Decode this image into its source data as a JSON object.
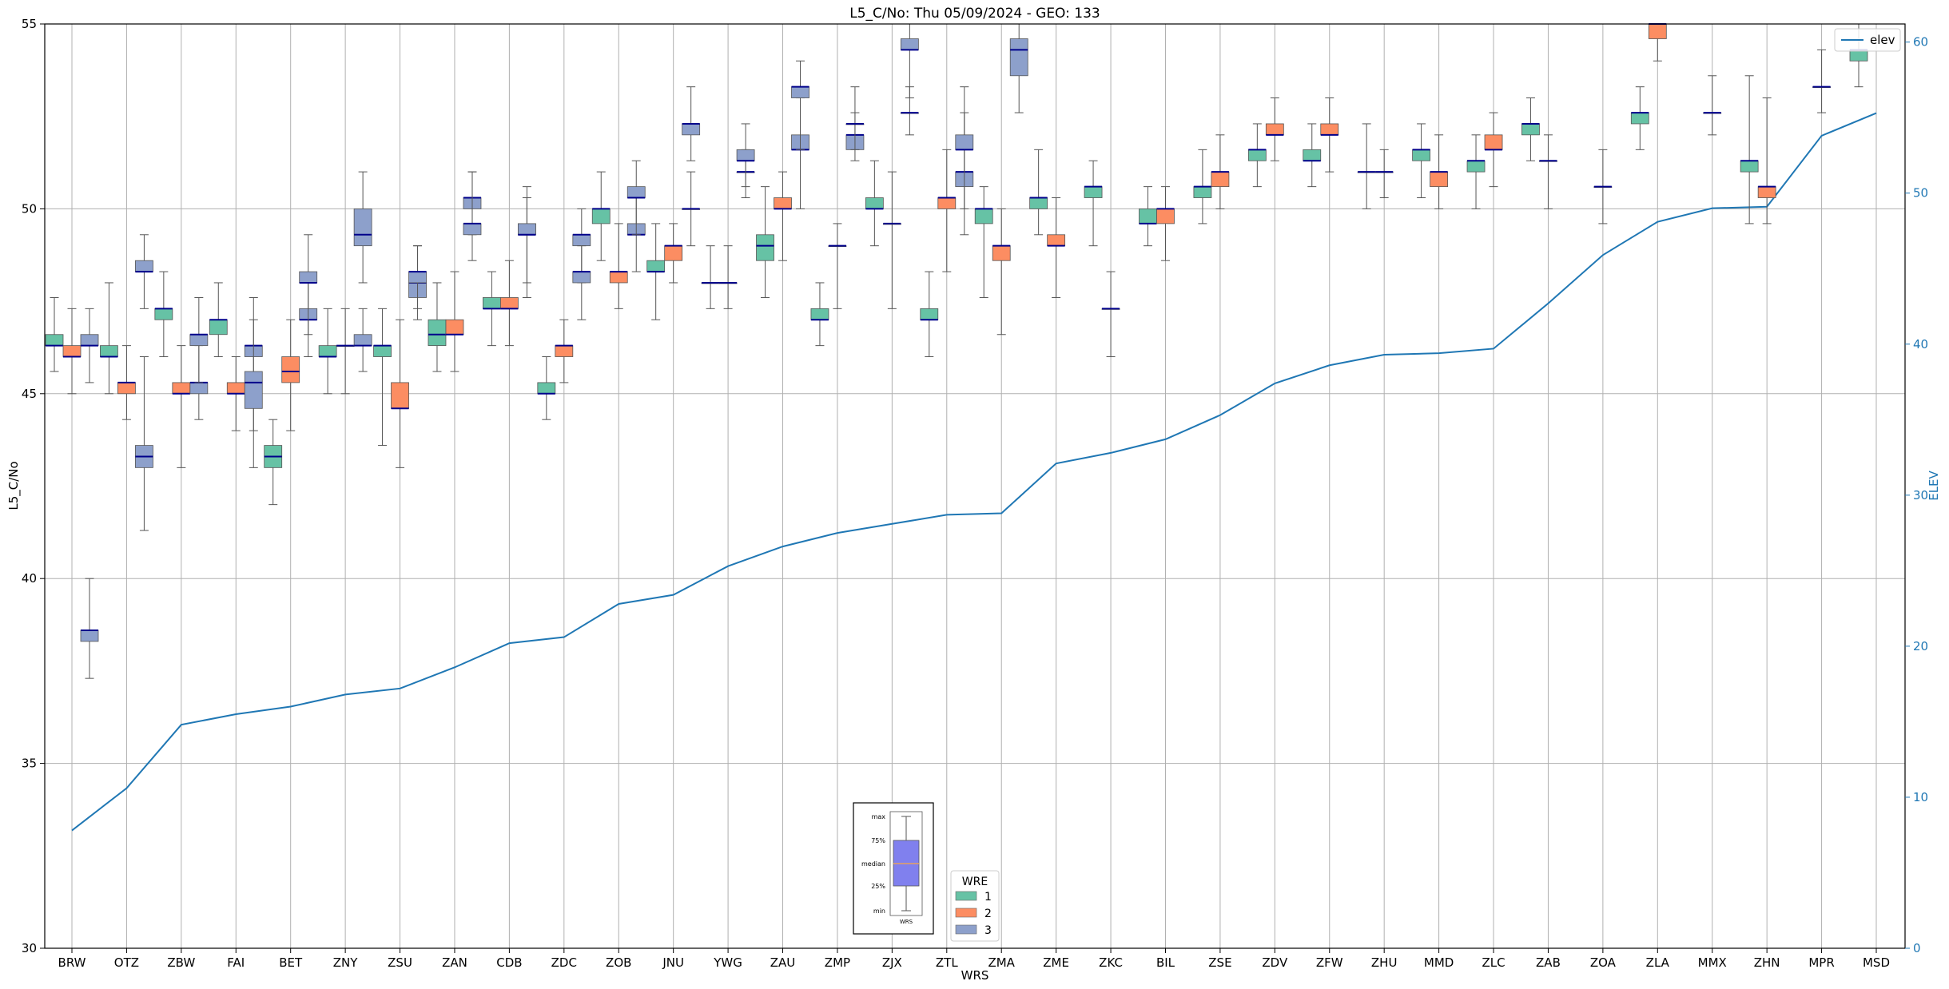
{
  "chart_data": {
    "type": "box",
    "title": "L5_C/No: Thu 05/09/2024 - GEO: 133",
    "xlabel": "WRS",
    "ylabel": "L5_C/No",
    "y2label": "ELEV",
    "ylim": [
      30,
      55
    ],
    "y2lim": [
      0,
      61.2
    ],
    "yticks": [
      30,
      35,
      40,
      45,
      50,
      55
    ],
    "y2ticks": [
      0,
      10,
      20,
      30,
      40,
      50,
      60
    ],
    "grid": true,
    "categories": [
      "BRW",
      "OTZ",
      "ZBW",
      "FAI",
      "BET",
      "ZNY",
      "ZSU",
      "ZAN",
      "CDB",
      "ZDC",
      "ZOB",
      "JNU",
      "YWG",
      "ZAU",
      "ZMP",
      "ZJX",
      "ZTL",
      "ZMA",
      "ZME",
      "ZKC",
      "BIL",
      "ZSE",
      "ZDV",
      "ZFW",
      "ZHU",
      "MMD",
      "ZLC",
      "ZAB",
      "ZOA",
      "ZLA",
      "MMX",
      "ZHN",
      "MPR",
      "MSD"
    ],
    "legend_wre": {
      "title": "WRE",
      "placement": "lower-center",
      "entries": [
        "1",
        "2",
        "3"
      ]
    },
    "legend_elev": {
      "label": "elev",
      "placement": "top-right"
    },
    "inset_legend": {
      "labels": [
        "max",
        "75%",
        "median",
        "25%",
        "min"
      ],
      "xlabel": "WRS",
      "placement": "lower-center"
    },
    "colors": {
      "wre1": "#66c2a5",
      "wre2": "#fc8d62",
      "wre3": "#8da0cb",
      "median": "#00008b",
      "elev": "#1f77b4",
      "whisker": "#555555",
      "grid": "#b0b0b0",
      "inset_box": "#8080ee",
      "inset_median": "#e6a060"
    },
    "box_series": [
      {
        "name": "1",
        "values": [
          {
            "min": 45.6,
            "q1": 46.3,
            "median": 46.3,
            "q3": 46.6,
            "max": 47.6
          },
          {
            "min": 45.0,
            "q1": 46.0,
            "median": 46.0,
            "q3": 46.3,
            "max": 48.0
          },
          {
            "min": 46.0,
            "q1": 47.0,
            "median": 47.3,
            "q3": 47.3,
            "max": 48.3
          },
          {
            "min": 46.0,
            "q1": 46.6,
            "median": 47.0,
            "q3": 47.0,
            "max": 48.0
          },
          {
            "min": 42.0,
            "q1": 43.0,
            "median": 43.3,
            "q3": 43.6,
            "max": 44.3
          },
          {
            "min": 45.0,
            "q1": 46.0,
            "median": 46.0,
            "q3": 46.3,
            "max": 47.3
          },
          {
            "min": 43.6,
            "q1": 46.0,
            "median": 46.3,
            "q3": 46.3,
            "max": 47.3
          },
          {
            "min": 45.6,
            "q1": 46.3,
            "median": 46.6,
            "q3": 47.0,
            "max": 48.0
          },
          {
            "min": 46.3,
            "q1": 47.3,
            "median": 47.3,
            "q3": 47.6,
            "max": 48.3
          },
          {
            "min": 44.3,
            "q1": 45.0,
            "median": 45.0,
            "q3": 45.3,
            "max": 46.0
          },
          {
            "min": 48.6,
            "q1": 49.6,
            "median": 50.0,
            "q3": 50.0,
            "max": 51.0
          },
          {
            "min": 47.0,
            "q1": 48.3,
            "median": 48.3,
            "q3": 48.6,
            "max": 49.6
          },
          {
            "min": 47.3,
            "q1": 48.0,
            "median": 48.0,
            "q3": 48.0,
            "max": 49.0
          },
          {
            "min": 47.6,
            "q1": 48.6,
            "median": 49.0,
            "q3": 49.3,
            "max": 50.6
          },
          {
            "min": 46.3,
            "q1": 47.0,
            "median": 47.0,
            "q3": 47.3,
            "max": 48.0
          },
          {
            "min": 49.0,
            "q1": 50.0,
            "median": 50.0,
            "q3": 50.3,
            "max": 51.3
          },
          {
            "min": 46.0,
            "q1": 47.0,
            "median": 47.0,
            "q3": 47.3,
            "max": 48.3
          },
          {
            "min": 47.6,
            "q1": 49.6,
            "median": 50.0,
            "q3": 50.0,
            "max": 50.6
          },
          {
            "min": 49.3,
            "q1": 50.0,
            "median": 50.3,
            "q3": 50.3,
            "max": 51.6
          },
          {
            "min": 49.0,
            "q1": 50.3,
            "median": 50.6,
            "q3": 50.6,
            "max": 51.3
          },
          {
            "min": 49.0,
            "q1": 49.6,
            "median": 49.6,
            "q3": 50.0,
            "max": 50.6
          },
          {
            "min": 49.6,
            "q1": 50.3,
            "median": 50.6,
            "q3": 50.6,
            "max": 51.6
          },
          {
            "min": 50.6,
            "q1": 51.3,
            "median": 51.6,
            "q3": 51.6,
            "max": 52.3
          },
          {
            "min": 50.6,
            "q1": 51.3,
            "median": 51.3,
            "q3": 51.6,
            "max": 52.3
          },
          {
            "min": 50.0,
            "q1": 51.0,
            "median": 51.0,
            "q3": 51.0,
            "max": 52.3
          },
          {
            "min": 50.3,
            "q1": 51.3,
            "median": 51.6,
            "q3": 51.6,
            "max": 52.3
          },
          {
            "min": 50.0,
            "q1": 51.0,
            "median": 51.3,
            "q3": 51.3,
            "max": 52.0
          },
          {
            "min": 51.3,
            "q1": 52.0,
            "median": 52.3,
            "q3": 52.3,
            "max": 53.0
          },
          {
            "min": 51.6,
            "q1": 52.3,
            "median": 52.6,
            "q3": 52.6,
            "max": 53.3
          },
          {
            "min": 49.6,
            "q1": 51.0,
            "median": 51.3,
            "q3": 51.3,
            "max": 53.6
          },
          {
            "min": 53.3,
            "q1": 54.0,
            "median": 54.3,
            "q3": 54.3,
            "max": 55.0
          }
        ],
        "slots": [
          0,
          1,
          2,
          3,
          4,
          5,
          6,
          7,
          8,
          9,
          10,
          11,
          12,
          13,
          14,
          15,
          16,
          17,
          18,
          19,
          20,
          21,
          22,
          23,
          24,
          25,
          26,
          27,
          29,
          31,
          33
        ]
      },
      {
        "name": "2",
        "values": [
          {
            "min": 45.0,
            "q1": 46.0,
            "median": 46.0,
            "q3": 46.3,
            "max": 47.3
          },
          {
            "min": 44.3,
            "q1": 45.0,
            "median": 45.3,
            "q3": 45.3,
            "max": 46.3
          },
          {
            "min": 43.0,
            "q1": 45.0,
            "median": 45.0,
            "q3": 45.3,
            "max": 46.3
          },
          {
            "min": 44.0,
            "q1": 45.0,
            "median": 45.0,
            "q3": 45.3,
            "max": 46.0
          },
          {
            "min": 44.0,
            "q1": 45.3,
            "median": 45.6,
            "q3": 46.0,
            "max": 47.0
          },
          {
            "min": 45.0,
            "q1": 46.3,
            "median": 46.3,
            "q3": 46.3,
            "max": 47.3
          },
          {
            "min": 43.0,
            "q1": 44.6,
            "median": 44.6,
            "q3": 45.3,
            "max": 47.0
          },
          {
            "min": 45.6,
            "q1": 46.6,
            "median": 46.6,
            "q3": 47.0,
            "max": 48.3
          },
          {
            "min": 46.3,
            "q1": 47.3,
            "median": 47.3,
            "q3": 47.6,
            "max": 48.6
          },
          {
            "min": 45.3,
            "q1": 46.0,
            "median": 46.3,
            "q3": 46.3,
            "max": 47.0
          },
          {
            "min": 47.3,
            "q1": 48.0,
            "median": 48.3,
            "q3": 48.3,
            "max": 49.6
          },
          {
            "min": 48.0,
            "q1": 48.6,
            "median": 49.0,
            "q3": 49.0,
            "max": 49.6
          },
          {
            "min": 47.3,
            "q1": 48.0,
            "median": 48.0,
            "q3": 48.0,
            "max": 49.0
          },
          {
            "min": 48.6,
            "q1": 50.0,
            "median": 50.0,
            "q3": 50.3,
            "max": 51.0
          },
          {
            "min": 47.3,
            "q1": 49.0,
            "median": 49.0,
            "q3": 49.0,
            "max": 49.6
          },
          {
            "min": 47.3,
            "q1": 49.6,
            "median": 49.6,
            "q3": 49.6,
            "max": 51.0
          },
          {
            "min": 48.3,
            "q1": 50.0,
            "median": 50.3,
            "q3": 50.3,
            "max": 51.6
          },
          {
            "min": 46.6,
            "q1": 48.6,
            "median": 49.0,
            "q3": 49.0,
            "max": 50.0
          },
          {
            "min": 47.6,
            "q1": 49.0,
            "median": 49.0,
            "q3": 49.3,
            "max": 50.3
          },
          {
            "min": 46.0,
            "q1": 47.3,
            "median": 47.3,
            "q3": 47.3,
            "max": 48.3
          },
          {
            "min": 48.6,
            "q1": 49.6,
            "median": 50.0,
            "q3": 50.0,
            "max": 50.6
          },
          {
            "min": 50.0,
            "q1": 50.6,
            "median": 51.0,
            "q3": 51.0,
            "max": 52.0
          },
          {
            "min": 51.3,
            "q1": 52.0,
            "median": 52.0,
            "q3": 52.3,
            "max": 53.0
          },
          {
            "min": 51.0,
            "q1": 52.0,
            "median": 52.0,
            "q3": 52.3,
            "max": 53.0
          },
          {
            "min": 50.3,
            "q1": 51.0,
            "median": 51.0,
            "q3": 51.0,
            "max": 51.6
          },
          {
            "min": 50.0,
            "q1": 50.6,
            "median": 51.0,
            "q3": 51.0,
            "max": 52.0
          },
          {
            "min": 50.6,
            "q1": 51.6,
            "median": 51.6,
            "q3": 52.0,
            "max": 52.6
          },
          {
            "min": 50.0,
            "q1": 51.3,
            "median": 51.3,
            "q3": 51.3,
            "max": 52.0
          },
          {
            "min": 49.6,
            "q1": 50.6,
            "median": 50.6,
            "q3": 50.6,
            "max": 51.6
          },
          {
            "min": 54.0,
            "q1": 54.6,
            "median": 55.0,
            "q3": 55.0,
            "max": 55.0
          },
          {
            "min": 52.0,
            "q1": 52.6,
            "median": 52.6,
            "q3": 52.6,
            "max": 53.6
          },
          {
            "min": 49.6,
            "q1": 50.3,
            "median": 50.6,
            "q3": 50.6,
            "max": 53.0
          },
          {
            "min": 52.6,
            "q1": 53.3,
            "median": 53.3,
            "q3": 53.3,
            "max": 54.3
          }
        ],
        "slots": [
          0,
          1,
          2,
          3,
          4,
          5,
          6,
          7,
          8,
          9,
          10,
          11,
          12,
          13,
          14,
          15,
          16,
          17,
          18,
          19,
          20,
          21,
          22,
          23,
          24,
          25,
          26,
          27,
          28,
          29,
          30,
          31,
          32
        ]
      },
      {
        "name": "3",
        "values": [
          {
            "min": 45.3,
            "q1": 46.3,
            "median": 46.3,
            "q3": 46.6,
            "max": 47.3
          },
          {
            "min": 37.3,
            "q1": 38.3,
            "median": 38.6,
            "q3": 38.6,
            "max": 40.0
          },
          {
            "min": 41.3,
            "q1": 43.0,
            "median": 43.3,
            "q3": 43.6,
            "max": 46.0
          },
          {
            "min": 47.3,
            "q1": 48.3,
            "median": 48.3,
            "q3": 48.6,
            "max": 49.3
          },
          {
            "min": 44.3,
            "q1": 45.0,
            "median": 45.3,
            "q3": 45.3,
            "max": 46.3
          },
          {
            "min": 45.3,
            "q1": 46.3,
            "median": 46.6,
            "q3": 46.6,
            "max": 47.6
          },
          {
            "min": 44.0,
            "q1": 46.0,
            "median": 46.3,
            "q3": 46.3,
            "max": 47.6
          },
          {
            "min": 43.0,
            "q1": 44.6,
            "median": 45.3,
            "q3": 45.6,
            "max": 47.0
          },
          {
            "min": 46.0,
            "q1": 47.0,
            "median": 47.0,
            "q3": 47.3,
            "max": 48.0
          },
          {
            "min": 46.6,
            "q1": 48.0,
            "median": 48.0,
            "q3": 48.3,
            "max": 49.3
          },
          {
            "min": 48.0,
            "q1": 49.0,
            "median": 49.3,
            "q3": 50.0,
            "max": 51.0
          },
          {
            "min": 45.6,
            "q1": 46.3,
            "median": 46.3,
            "q3": 46.6,
            "max": 47.3
          },
          {
            "min": 47.3,
            "q1": 47.6,
            "median": 48.0,
            "q3": 48.0,
            "max": 49.0
          },
          {
            "min": 47.0,
            "q1": 48.0,
            "median": 48.3,
            "q3": 48.3,
            "max": 49.0
          },
          {
            "min": 49.3,
            "q1": 50.0,
            "median": 50.3,
            "q3": 50.3,
            "max": 51.0
          },
          {
            "min": 48.6,
            "q1": 49.3,
            "median": 49.6,
            "q3": 49.6,
            "max": 51.0
          },
          {
            "min": 48.0,
            "q1": 49.3,
            "median": 49.3,
            "q3": 49.6,
            "max": 50.6
          },
          {
            "min": 47.6,
            "q1": 49.3,
            "median": 49.3,
            "q3": 49.6,
            "max": 50.3
          },
          {
            "min": 48.0,
            "q1": 49.0,
            "median": 49.3,
            "q3": 49.3,
            "max": 50.0
          },
          {
            "min": 47.0,
            "q1": 48.0,
            "median": 48.3,
            "q3": 48.3,
            "max": 49.0
          },
          {
            "min": 48.3,
            "q1": 49.3,
            "median": 49.3,
            "q3": 49.6,
            "max": 50.3
          },
          {
            "min": 49.3,
            "q1": 50.3,
            "median": 50.3,
            "q3": 50.6,
            "max": 51.3
          },
          {
            "min": 49.0,
            "q1": 50.0,
            "median": 50.0,
            "q3": 50.0,
            "max": 51.0
          },
          {
            "min": 51.3,
            "q1": 52.0,
            "median": 52.3,
            "q3": 52.3,
            "max": 53.3
          },
          {
            "min": 50.3,
            "q1": 51.0,
            "median": 51.0,
            "q3": 51.0,
            "max": 51.6
          },
          {
            "min": 50.6,
            "q1": 51.3,
            "median": 51.3,
            "q3": 51.6,
            "max": 52.3
          },
          {
            "min": 50.0,
            "q1": 51.6,
            "median": 51.6,
            "q3": 52.0,
            "max": 53.0
          },
          {
            "min": 51.6,
            "q1": 53.0,
            "median": 53.3,
            "q3": 53.3,
            "max": 54.0
          },
          {
            "min": 51.3,
            "q1": 51.6,
            "median": 52.0,
            "q3": 52.0,
            "max": 52.6
          },
          {
            "min": 51.6,
            "q1": 52.3,
            "median": 52.3,
            "q3": 52.3,
            "max": 53.3
          },
          {
            "min": 53.0,
            "q1": 54.3,
            "median": 54.3,
            "q3": 54.6,
            "max": 55.0
          },
          {
            "min": 52.0,
            "q1": 52.6,
            "median": 52.6,
            "q3": 52.6,
            "max": 53.3
          },
          {
            "min": 50.0,
            "q1": 50.6,
            "median": 51.0,
            "q3": 51.0,
            "max": 53.3
          },
          {
            "min": 49.3,
            "q1": 51.6,
            "median": 51.6,
            "q3": 52.0,
            "max": 52.6
          },
          {
            "min": 52.6,
            "q1": 53.6,
            "median": 54.3,
            "q3": 54.6,
            "max": 55.0
          }
        ],
        "slots": [
          0,
          0,
          1,
          1,
          2,
          2,
          3,
          3,
          4,
          4,
          5,
          5,
          6,
          6,
          7,
          7,
          8,
          8,
          9,
          9,
          10,
          10,
          11,
          11,
          12,
          12,
          13,
          13,
          14,
          14,
          15,
          15,
          16,
          16,
          17
        ]
      }
    ],
    "elev": [
      7.8,
      10.6,
      14.8,
      15.5,
      16.0,
      16.8,
      17.2,
      18.6,
      20.2,
      20.6,
      22.8,
      23.4,
      25.3,
      26.6,
      27.5,
      28.1,
      28.7,
      28.8,
      32.1,
      32.8,
      33.7,
      35.3,
      37.4,
      38.6,
      39.3,
      39.4,
      39.7,
      42.7,
      45.9,
      48.1,
      49.0,
      49.1,
      53.8,
      55.3
    ]
  }
}
